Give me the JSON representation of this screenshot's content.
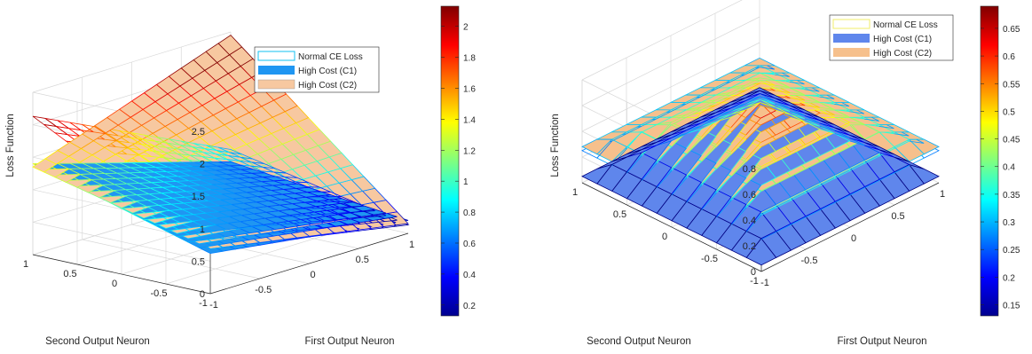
{
  "chart_data": [
    {
      "type": "surface",
      "xlabel": "First Output Neuron",
      "ylabel": "Second Output Neuron",
      "zlabel": "Loss Function",
      "xlim": [
        -1,
        1
      ],
      "ylim": [
        -1,
        1
      ],
      "zlim": [
        0,
        2.5
      ],
      "x_ticks": [
        "-1",
        "-0.5",
        "0",
        "0.5",
        "1"
      ],
      "y_ticks": [
        "-1",
        "-0.5",
        "0",
        "0.5",
        "1"
      ],
      "z_ticks": [
        "0",
        "0.5",
        "1",
        "1.5",
        "2",
        "2.5"
      ],
      "grid": true,
      "legend_position": "top-right",
      "series": [
        {
          "name": "Normal CE Loss",
          "style": "mesh",
          "values_at_corners": {
            "x-1_y-1": 0.69,
            "x1_y-1": 0.13,
            "x-1_y1": 2.13,
            "x1_y1": 0.69
          }
        },
        {
          "name": "High Cost (C1)",
          "style": "solid",
          "values_at_corners": {
            "x-1_y-1": 0.62,
            "x1_y-1": 0.2,
            "x-1_y1": 1.4,
            "x1_y1": 0.5
          }
        },
        {
          "name": "High Cost (C2)",
          "style": "solid",
          "values_at_corners": {
            "x-1_y-1": 0.69,
            "x1_y-1": 0.15,
            "x-1_y1": 1.35,
            "x1_y1": 2.45
          }
        }
      ],
      "colorbar": {
        "min": 0.13,
        "max": 2.13,
        "ticks": [
          "0.2",
          "0.4",
          "0.6",
          "0.8",
          "1",
          "1.2",
          "1.4",
          "1.6",
          "1.8",
          "2"
        ]
      }
    },
    {
      "type": "surface",
      "xlabel": "First Output Neuron",
      "ylabel": "Second Output Neuron",
      "zlabel": "Loss Function",
      "xlim": [
        -1,
        1
      ],
      "ylim": [
        -1,
        1
      ],
      "zlim": [
        0,
        0.8
      ],
      "x_ticks": [
        "-1",
        "-0.5",
        "0",
        "0.5",
        "1"
      ],
      "y_ticks": [
        "-1",
        "-0.5",
        "0",
        "0.5",
        "1"
      ],
      "z_ticks": [
        "0",
        "0.2",
        "0.4",
        "0.6",
        "0.8"
      ],
      "grid": true,
      "legend_position": "top-right",
      "series": [
        {
          "name": "Normal CE Loss",
          "style": "mesh",
          "peak_value": 0.69,
          "edge_value": 0.25
        },
        {
          "name": "High Cost (C1)",
          "style": "solid",
          "peak_value": 0.6,
          "edge_value": 0.05
        },
        {
          "name": "High Cost (C2)",
          "style": "solid",
          "peak_value": 0.62,
          "edge_value": 0.28
        }
      ],
      "colorbar": {
        "min": 0.13,
        "max": 0.69,
        "ticks": [
          "0.15",
          "0.2",
          "0.25",
          "0.3",
          "0.35",
          "0.4",
          "0.45",
          "0.5",
          "0.55",
          "0.6",
          "0.65"
        ]
      }
    }
  ],
  "legend": {
    "normal_label": "Normal CE Loss",
    "c1_label": "High Cost (C1)",
    "c2_label": "High Cost (C2)",
    "c1_color": "#1f96f2",
    "c2_color": "#f7c8a0",
    "c1_color_right": "#5f86ec",
    "c2_color_right": "#f6c08c"
  }
}
